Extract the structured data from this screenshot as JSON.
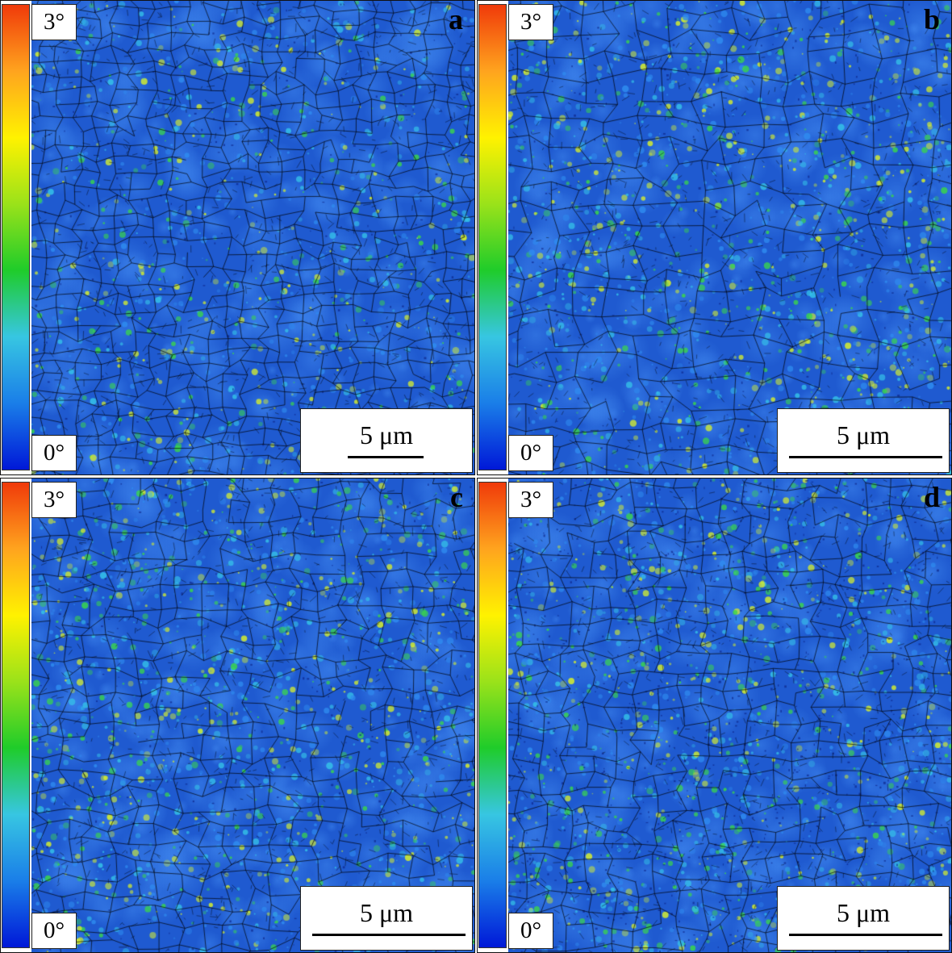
{
  "colorscale": {
    "max_label": "3°",
    "min_label": "0°",
    "colors": [
      "#0018d8",
      "#1a7ee8",
      "#37c6e2",
      "#1fcc2a",
      "#9ae21a",
      "#fff200",
      "#ffa41e",
      "#f03a0a"
    ]
  },
  "map_colors": {
    "base": "#1f5ad0",
    "blue_light": "#2f8cf0",
    "cyan": "#35c2e8",
    "green": "#3ad64a",
    "yellow": "#d8f02a",
    "dark": "#0a1e80",
    "boundary": "#000000"
  },
  "panels": [
    {
      "id": "a",
      "label": "a",
      "scale_text": "5 μm"
    },
    {
      "id": "b",
      "label": "b",
      "scale_text": "5 μm"
    },
    {
      "id": "c",
      "label": "c",
      "scale_text": "5 μm"
    },
    {
      "id": "d",
      "label": "d",
      "scale_text": "5 μm"
    }
  ]
}
